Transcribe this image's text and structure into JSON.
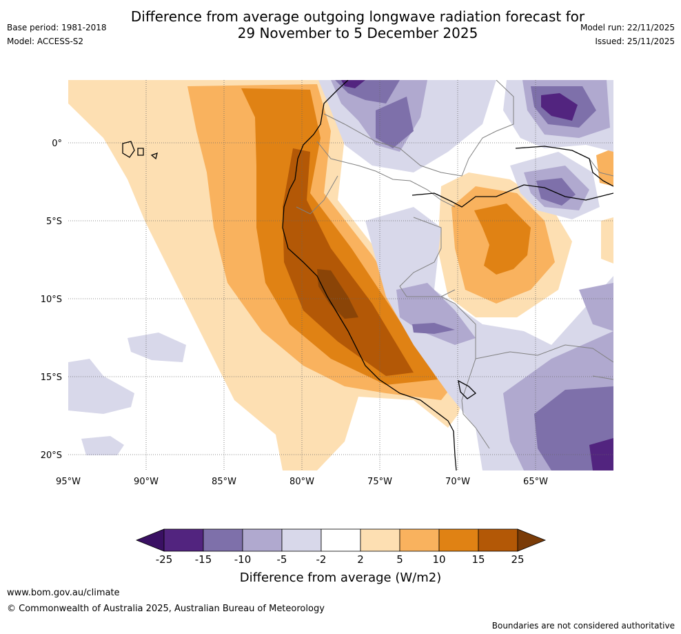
{
  "header": {
    "title_line1": "Difference from average outgoing longwave radiation forecast for",
    "title_line2": "29 November to 5 December 2025",
    "base_period": "Base period: 1981-2018",
    "model": "Model: ACCESS-S2",
    "model_run": "Model run: 22/11/2025",
    "issued": "Issued: 25/11/2025"
  },
  "map": {
    "lat_labels": [
      "0°",
      "5°S",
      "10°S",
      "15°S",
      "20°S"
    ],
    "lon_labels": [
      "95°W",
      "90°W",
      "85°W",
      "80°W",
      "75°W",
      "70°W",
      "65°W"
    ]
  },
  "colorbar": {
    "ticks": [
      "-25",
      "-15",
      "-10",
      "-5",
      "-2",
      "2",
      "5",
      "10",
      "15",
      "25"
    ],
    "colors": [
      "#3a1063",
      "#52247f",
      "#7e70aa",
      "#b0a9cf",
      "#d8d8ea",
      "#ffffff",
      "#fddfb2",
      "#f9b25e",
      "#e08214",
      "#b35806",
      "#7a3b07"
    ],
    "label": "Difference from average (W/m2)"
  },
  "footer": {
    "website": "www.bom.gov.au/climate",
    "copyright": "© Commonwealth of Australia 2025, Australian Bureau of Meteorology",
    "disclaimer": "Boundaries are not considered authoritative"
  }
}
